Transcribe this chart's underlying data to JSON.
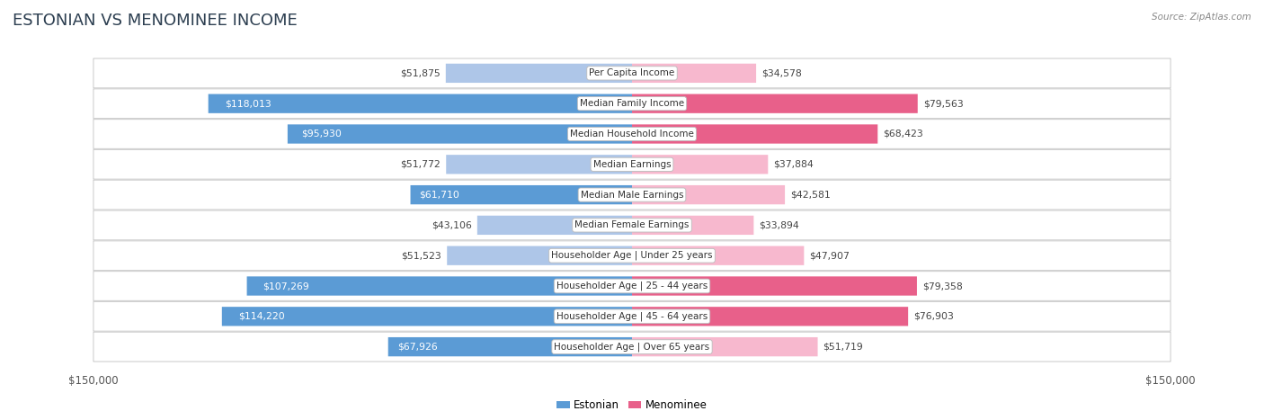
{
  "title": "ESTONIAN VS MENOMINEE INCOME",
  "source": "Source: ZipAtlas.com",
  "categories": [
    "Per Capita Income",
    "Median Family Income",
    "Median Household Income",
    "Median Earnings",
    "Median Male Earnings",
    "Median Female Earnings",
    "Householder Age | Under 25 years",
    "Householder Age | 25 - 44 years",
    "Householder Age | 45 - 64 years",
    "Householder Age | Over 65 years"
  ],
  "estonian_values": [
    51875,
    118013,
    95930,
    51772,
    61710,
    43106,
    51523,
    107269,
    114220,
    67926
  ],
  "menominee_values": [
    34578,
    79563,
    68423,
    37884,
    42581,
    33894,
    47907,
    79358,
    76903,
    51719
  ],
  "estonian_labels": [
    "$51,875",
    "$118,013",
    "$95,930",
    "$51,772",
    "$61,710",
    "$43,106",
    "$51,523",
    "$107,269",
    "$114,220",
    "$67,926"
  ],
  "menominee_labels": [
    "$34,578",
    "$79,563",
    "$68,423",
    "$37,884",
    "$42,581",
    "$33,894",
    "$47,907",
    "$79,358",
    "$76,903",
    "$51,719"
  ],
  "max_value": 150000,
  "estonian_color_light": "#aec6e8",
  "estonian_color_dark": "#5b9bd5",
  "menominee_color_light": "#f7b8ce",
  "menominee_color_dark": "#e8608a",
  "bg_color": "#ffffff",
  "row_bg": "#ffffff",
  "row_border": "#d0d0d0",
  "label_inside_color": "#ffffff",
  "label_outside_color": "#444444",
  "category_font_size": 7.5,
  "value_font_size": 7.8,
  "title_font_size": 13,
  "inside_threshold": 60000
}
